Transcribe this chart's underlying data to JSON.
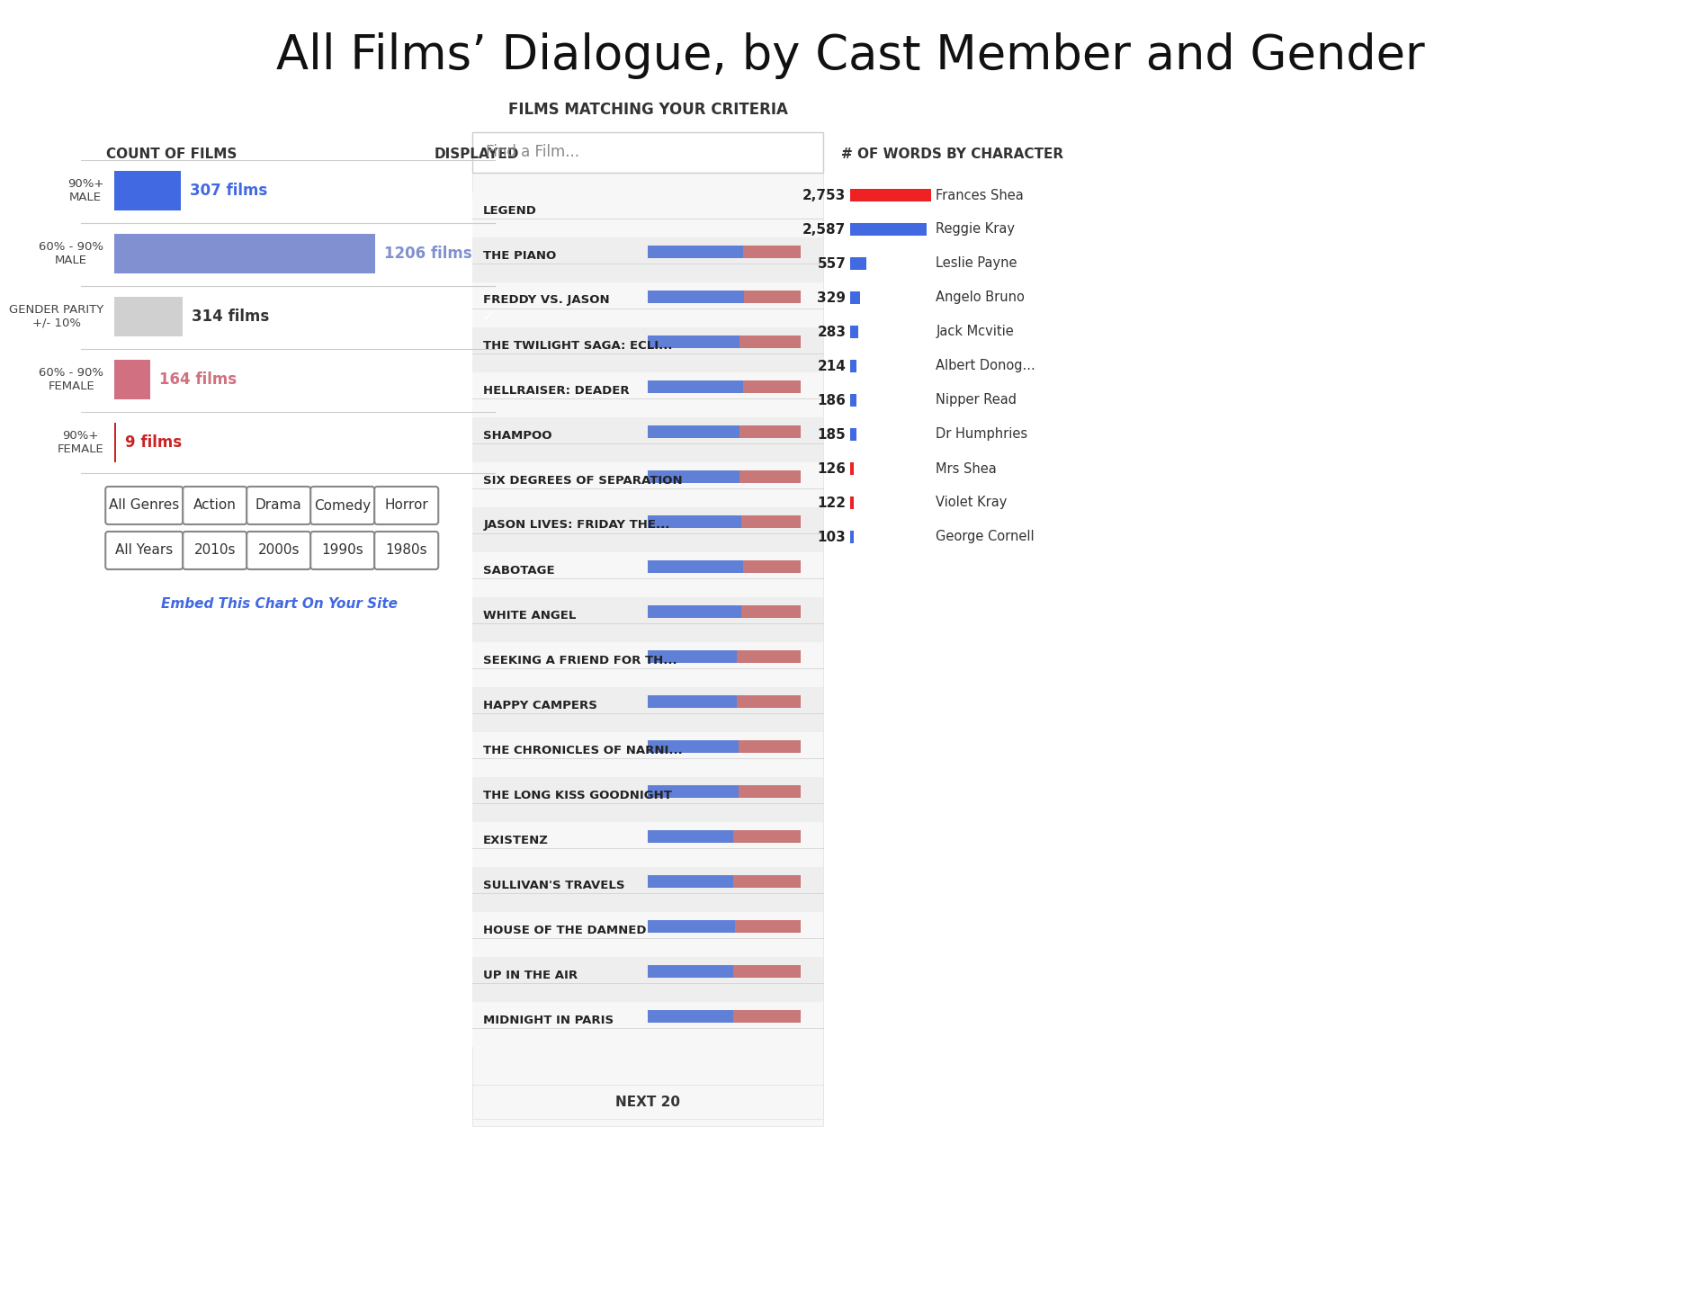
{
  "title": "All Films’ Dialogue, by Cast Member and Gender",
  "left_panel": {
    "header_count": "COUNT OF FILMS",
    "header_displayed": "DISPLAYED",
    "categories": [
      {
        "label": "90%+\nMALE",
        "value": 307,
        "max_value": 1206,
        "color": "#4169e1",
        "text": "307 films",
        "text_color": "#4169e1",
        "checked": false
      },
      {
        "label": "60% - 90%\nMALE",
        "value": 1206,
        "max_value": 1206,
        "color": "#8090d0",
        "text": "1206 films",
        "text_color": "#8090d0",
        "checked": false
      },
      {
        "label": "GENDER PARITY\n+/- 10%",
        "value": 314,
        "max_value": 1206,
        "color": "#d0d0d0",
        "text": "314 films",
        "text_color": "#333333",
        "checked": true
      },
      {
        "label": "60% - 90%\nFEMALE",
        "value": 164,
        "max_value": 1206,
        "color": "#d07080",
        "text": "164 films",
        "text_color": "#d07080",
        "checked": false
      },
      {
        "label": "90%+\nFEMALE",
        "value": 9,
        "max_value": 1206,
        "color": "#cc2222",
        "text": "9 films",
        "text_color": "#cc2222",
        "checked": false
      }
    ],
    "genres": [
      "All Genres",
      "Action",
      "Drama",
      "Comedy",
      "Horror"
    ],
    "years": [
      "All Years",
      "2010s",
      "2000s",
      "1990s",
      "1980s"
    ],
    "embed_text": "Embed This Chart On Your Site"
  },
  "right_panel": {
    "header": "FILMS MATCHING YOUR CRITERIA",
    "search_placeholder": "Find a Film...",
    "films": [
      {
        "name": "LEGEND",
        "male": 0,
        "female": 0
      },
      {
        "name": "THE PIANO",
        "male": 0.62,
        "female": 0.38
      },
      {
        "name": "FREDDY VS. JASON",
        "male": 0.63,
        "female": 0.37
      },
      {
        "name": "THE TWILIGHT SAGA: ECLI...",
        "male": 0.6,
        "female": 0.4
      },
      {
        "name": "HELLRAISER: DEADER",
        "male": 0.62,
        "female": 0.38
      },
      {
        "name": "SHAMPOO",
        "male": 0.6,
        "female": 0.4
      },
      {
        "name": "SIX DEGREES OF SEPARATION",
        "male": 0.6,
        "female": 0.4
      },
      {
        "name": "JASON LIVES: FRIDAY THE...",
        "male": 0.61,
        "female": 0.39
      },
      {
        "name": "SABOTAGE",
        "male": 0.62,
        "female": 0.38
      },
      {
        "name": "WHITE ANGEL",
        "male": 0.61,
        "female": 0.39
      },
      {
        "name": "SEEKING A FRIEND FOR TH...",
        "male": 0.58,
        "female": 0.42
      },
      {
        "name": "HAPPY CAMPERS",
        "male": 0.58,
        "female": 0.42
      },
      {
        "name": "THE CHRONICLES OF NARNI...",
        "male": 0.59,
        "female": 0.41
      },
      {
        "name": "THE LONG KISS GOODNIGHT",
        "male": 0.59,
        "female": 0.41
      },
      {
        "name": "EXISTENZ",
        "male": 0.56,
        "female": 0.44
      },
      {
        "name": "SULLIVAN'S TRAVELS",
        "male": 0.56,
        "female": 0.44
      },
      {
        "name": "HOUSE OF THE DAMNED",
        "male": 0.57,
        "female": 0.43
      },
      {
        "name": "UP IN THE AIR",
        "male": 0.56,
        "female": 0.44
      },
      {
        "name": "MIDNIGHT IN PARIS",
        "male": 0.56,
        "female": 0.44
      }
    ],
    "next_button": "NEXT 20"
  },
  "legend_panel": {
    "header": "# OF WORDS BY CHARACTER",
    "entries": [
      {
        "value": "2,753",
        "color": "#ee2222",
        "label": "Frances Shea",
        "bar_width": 1.0
      },
      {
        "value": "2,587",
        "color": "#4169e1",
        "label": "Reggie Kray",
        "bar_width": 0.94
      },
      {
        "value": "557",
        "color": "#4169e1",
        "label": "Leslie Payne",
        "bar_width": 0.2
      },
      {
        "value": "329",
        "color": "#4169e1",
        "label": "Angelo Bruno",
        "bar_width": 0.12
      },
      {
        "value": "283",
        "color": "#4169e1",
        "label": "Jack Mcvitie",
        "bar_width": 0.1
      },
      {
        "value": "214",
        "color": "#4169e1",
        "label": "Albert Donog...",
        "bar_width": 0.08
      },
      {
        "value": "186",
        "color": "#4169e1",
        "label": "Nipper Read",
        "bar_width": 0.07
      },
      {
        "value": "185",
        "color": "#4169e1",
        "label": "Dr Humphries",
        "bar_width": 0.07
      },
      {
        "value": "126",
        "color": "#ee2222",
        "label": "Mrs Shea",
        "bar_width": 0.046
      },
      {
        "value": "122",
        "color": "#ee2222",
        "label": "Violet Kray",
        "bar_width": 0.044
      },
      {
        "value": "103",
        "color": "#4169e1",
        "label": "George Cornell",
        "bar_width": 0.037
      }
    ]
  },
  "colors": {
    "male_bar": "#6080d8",
    "female_bar": "#c87878",
    "male_bar_dark": "#4169e1",
    "female_bar_dark": "#d07080",
    "background": "#ffffff",
    "panel_bg": "#f5f5f5",
    "separator": "#dddddd",
    "text_dark": "#222222",
    "text_medium": "#555555",
    "checkbox_blue": "#4169e1"
  }
}
